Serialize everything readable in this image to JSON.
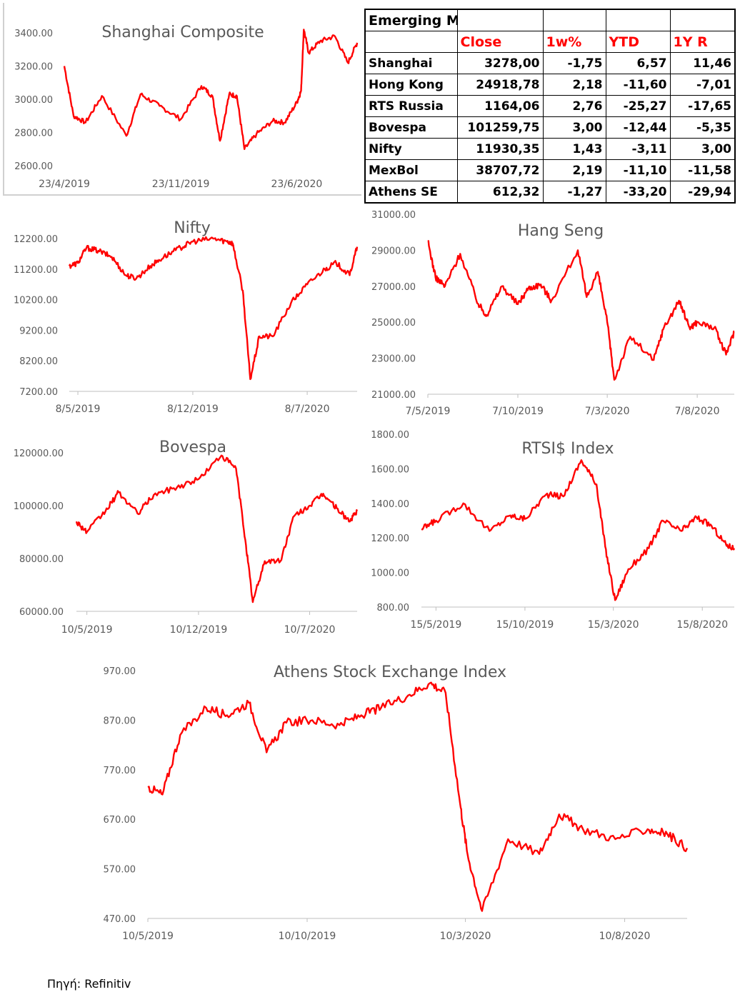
{
  "table": {
    "title": "Emerging Markets",
    "headers": [
      "Close",
      "1w%",
      "YTD",
      "1Y R"
    ],
    "rows": [
      {
        "name": "Shanghai",
        "close": "3278,00",
        "w1": "-1,75",
        "ytd": "6,57",
        "y1": "11,46"
      },
      {
        "name": "Hong Kong",
        "close": "24918,78",
        "w1": "2,18",
        "ytd": "-11,60",
        "y1": "-7,01"
      },
      {
        "name": "RTS Russia",
        "close": "1164,06",
        "w1": "2,76",
        "ytd": "-25,27",
        "y1": "-17,65"
      },
      {
        "name": "Bovespa",
        "close": "101259,75",
        "w1": "3,00",
        "ytd": "-12,44",
        "y1": "-5,35"
      },
      {
        "name": "Nifty",
        "close": "11930,35",
        "w1": "1,43",
        "ytd": "-3,11",
        "y1": "3,00"
      },
      {
        "name": "MexBol",
        "close": "38707,72",
        "w1": "2,19",
        "ytd": "-11,10",
        "y1": "-11,58"
      },
      {
        "name": "Athens SE",
        "close": "612,32",
        "w1": "-1,27",
        "ytd": "-33,20",
        "y1": "-29,94"
      }
    ]
  },
  "source": "Πηγή: Refinitiv",
  "line_color": "#ff0000",
  "chart_data": [
    {
      "id": "shanghai",
      "type": "line",
      "title": "Shanghai Composite",
      "yticks": [
        "2600.00",
        "2800.00",
        "3000.00",
        "3200.00",
        "3400.00"
      ],
      "ylim": [
        2600,
        3400
      ],
      "xticks": [
        "23/4/2019",
        "23/11/2019",
        "23/6/2020"
      ],
      "x": [
        "2019-04-23",
        "2019-05-10",
        "2019-06-01",
        "2019-07-01",
        "2019-08-15",
        "2019-09-10",
        "2019-10-15",
        "2019-11-23",
        "2019-12-31",
        "2020-01-20",
        "2020-02-03",
        "2020-02-20",
        "2020-03-05",
        "2020-03-19",
        "2020-04-10",
        "2020-05-10",
        "2020-06-01",
        "2020-06-23",
        "2020-07-01",
        "2020-07-06",
        "2020-07-15",
        "2020-08-05",
        "2020-09-01",
        "2020-09-25",
        "2020-10-12"
      ],
      "values": [
        3200,
        2900,
        2860,
        3020,
        2780,
        3030,
        2960,
        2880,
        3080,
        3020,
        2750,
        3030,
        3020,
        2700,
        2790,
        2870,
        2860,
        2980,
        3050,
        3420,
        3280,
        3350,
        3380,
        3220,
        3340
      ]
    },
    {
      "id": "nifty",
      "type": "line",
      "title": "Nifty",
      "yticks": [
        "7200.00",
        "8200.00",
        "9200.00",
        "10200.00",
        "11200.00",
        "12200.00"
      ],
      "ylim": [
        7200,
        12200
      ],
      "xticks": [
        "8/5/2019",
        "8/12/2019",
        "8/7/2020"
      ],
      "x": [
        "2019-04-22",
        "2019-05-08",
        "2019-05-24",
        "2019-06-15",
        "2019-07-10",
        "2019-08-05",
        "2019-08-25",
        "2019-09-20",
        "2019-10-15",
        "2019-11-15",
        "2019-12-08",
        "2020-01-15",
        "2020-02-10",
        "2020-02-20",
        "2020-03-10",
        "2020-03-24",
        "2020-04-10",
        "2020-05-05",
        "2020-06-08",
        "2020-07-08",
        "2020-08-10",
        "2020-08-31",
        "2020-09-25",
        "2020-10-09"
      ],
      "values": [
        11300,
        11400,
        11900,
        11800,
        11600,
        11000,
        10900,
        11300,
        11600,
        11900,
        12100,
        12200,
        12100,
        12050,
        10500,
        7600,
        9000,
        9000,
        10100,
        10700,
        11200,
        11400,
        11000,
        11930
      ]
    },
    {
      "id": "hangseng",
      "type": "line",
      "title": "Hang Seng",
      "yticks": [
        "21000.00",
        "23000.00",
        "25000.00",
        "27000.00",
        "29000.00",
        "31000.00"
      ],
      "ylim": [
        21000,
        31000
      ],
      "xticks": [
        "7/5/2019",
        "7/10/2019",
        "7/3/2020",
        "7/8/2020"
      ],
      "x": [
        "2019-05-07",
        "2019-05-20",
        "2019-06-05",
        "2019-07-01",
        "2019-08-01",
        "2019-08-15",
        "2019-09-10",
        "2019-10-07",
        "2019-10-25",
        "2019-11-15",
        "2019-12-03",
        "2020-01-17",
        "2020-02-01",
        "2020-02-20",
        "2020-03-07",
        "2020-03-19",
        "2020-04-15",
        "2020-05-25",
        "2020-06-10",
        "2020-07-07",
        "2020-07-25",
        "2020-08-07",
        "2020-09-05",
        "2020-09-25",
        "2020-10-09"
      ],
      "values": [
        29500,
        27500,
        27000,
        28800,
        26000,
        25400,
        27000,
        26000,
        26900,
        27100,
        26200,
        29000,
        26400,
        27800,
        25000,
        21800,
        24200,
        22900,
        24600,
        26200,
        24700,
        25000,
        24700,
        23200,
        24500
      ]
    },
    {
      "id": "bovespa",
      "type": "line",
      "title": "Bovespa",
      "yticks": [
        "60000.00",
        "80000.00",
        "100000.00",
        "120000.00"
      ],
      "ylim": [
        60000,
        120000
      ],
      "xticks": [
        "10/5/2019",
        "10/12/2019",
        "10/7/2020"
      ],
      "x": [
        "2019-04-20",
        "2019-05-10",
        "2019-06-15",
        "2019-07-10",
        "2019-08-15",
        "2019-09-15",
        "2019-10-30",
        "2019-12-10",
        "2020-01-23",
        "2020-02-20",
        "2020-03-10",
        "2020-03-23",
        "2020-04-15",
        "2020-05-15",
        "2020-06-10",
        "2020-07-10",
        "2020-08-05",
        "2020-08-31",
        "2020-09-25",
        "2020-10-09"
      ],
      "values": [
        94000,
        90000,
        98000,
        105000,
        97000,
        104000,
        107000,
        110000,
        119000,
        114000,
        85000,
        63500,
        79000,
        79000,
        96000,
        100000,
        104500,
        99000,
        94000,
        98000
      ]
    },
    {
      "id": "rts",
      "type": "line",
      "title": "RTSI$ Index",
      "yticks": [
        "800.00",
        "1000.00",
        "1200.00",
        "1400.00",
        "1600.00",
        "1800.00"
      ],
      "ylim": [
        800,
        1800
      ],
      "xticks": [
        "15/5/2019",
        "15/10/2019",
        "15/3/2020",
        "15/8/2020"
      ],
      "x": [
        "2019-04-20",
        "2019-05-15",
        "2019-07-01",
        "2019-08-15",
        "2019-09-20",
        "2019-10-15",
        "2019-11-20",
        "2019-12-20",
        "2020-01-20",
        "2020-02-15",
        "2020-03-01",
        "2020-03-18",
        "2020-04-10",
        "2020-05-15",
        "2020-06-08",
        "2020-07-10",
        "2020-08-05",
        "2020-08-31",
        "2020-09-25",
        "2020-10-09"
      ],
      "values": [
        1250,
        1300,
        1400,
        1240,
        1330,
        1310,
        1450,
        1440,
        1650,
        1510,
        1150,
        840,
        1020,
        1140,
        1300,
        1240,
        1320,
        1270,
        1160,
        1140
      ]
    },
    {
      "id": "athens",
      "type": "line",
      "title": "Athens Stock Exchange Index",
      "yticks": [
        "470.00",
        "570.00",
        "670.00",
        "770.00",
        "870.00",
        "970.00"
      ],
      "ylim": [
        470,
        970
      ],
      "xticks": [
        "10/5/2019",
        "10/10/2019",
        "10/3/2020",
        "10/8/2020"
      ],
      "x": [
        "2019-05-10",
        "2019-05-24",
        "2019-06-10",
        "2019-07-05",
        "2019-07-25",
        "2019-08-15",
        "2019-09-01",
        "2019-09-20",
        "2019-10-15",
        "2019-11-10",
        "2019-12-01",
        "2019-12-20",
        "2020-01-15",
        "2020-02-05",
        "2020-02-20",
        "2020-03-05",
        "2020-03-12",
        "2020-03-26",
        "2020-04-20",
        "2020-05-20",
        "2020-06-08",
        "2020-07-01",
        "2020-08-01",
        "2020-09-01",
        "2020-09-20",
        "2020-10-09"
      ],
      "values": [
        735,
        720,
        840,
        895,
        880,
        905,
        805,
        865,
        870,
        860,
        880,
        895,
        920,
        945,
        925,
        700,
        600,
        485,
        630,
        600,
        680,
        650,
        630,
        650,
        640,
        612
      ]
    }
  ]
}
